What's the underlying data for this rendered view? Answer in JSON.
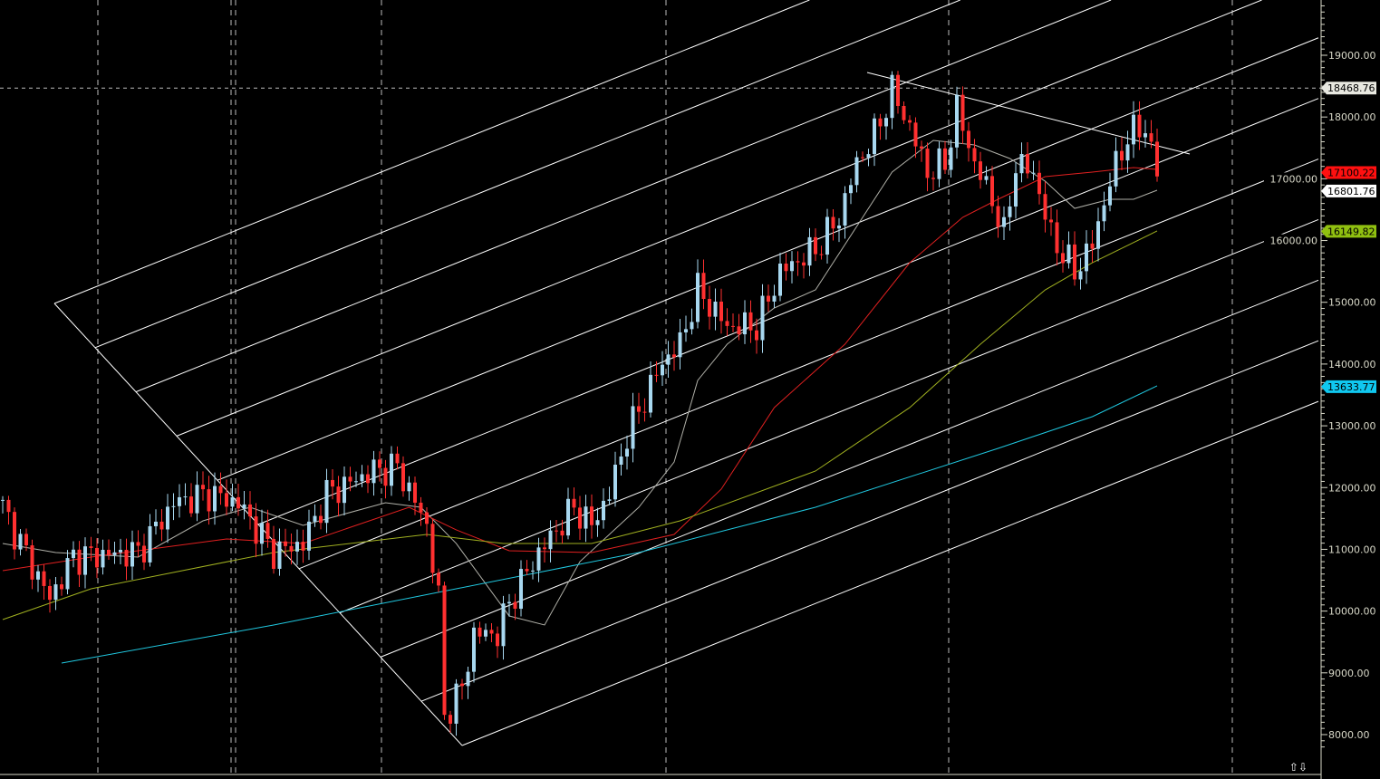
{
  "chart_data": {
    "type": "candlestick",
    "title": "",
    "xlabel": "",
    "ylabel": "",
    "ylim": [
      7700,
      19900
    ],
    "y_ticks": [
      "8000.00",
      "9000.00",
      "10000.00",
      "11000.00",
      "12000.00",
      "13000.00",
      "14000.00",
      "15000.00",
      "16000.00",
      "17000.00",
      "18000.00",
      "19000.00"
    ],
    "grid": "dashed vertical",
    "colors": {
      "up": "#a8d8f0",
      "down": "#ff3030",
      "ma_fast": "#b0b0a8",
      "ma_mid": "#e02020",
      "ma_slow": "#a0b020",
      "ma_long": "#20c8e0",
      "background": "#000000"
    },
    "closes": [
      [
        0,
        11680
      ],
      [
        3,
        11100
      ],
      [
        8,
        10200
      ],
      [
        12,
        10880
      ],
      [
        23,
        10950
      ],
      [
        29,
        11750
      ],
      [
        35,
        11900
      ],
      [
        40,
        11750
      ],
      [
        46,
        10950
      ],
      [
        51,
        11100
      ],
      [
        55,
        11900
      ],
      [
        63,
        12270
      ],
      [
        67,
        12340
      ],
      [
        72,
        11390
      ],
      [
        74,
        10200
      ],
      [
        75,
        8300
      ],
      [
        78,
        8750
      ],
      [
        80,
        9630
      ],
      [
        84,
        9630
      ],
      [
        86,
        10140
      ],
      [
        91,
        10950
      ],
      [
        97,
        11680
      ],
      [
        100,
        11390
      ],
      [
        103,
        11900
      ],
      [
        106,
        12850
      ],
      [
        109,
        13440
      ],
      [
        112,
        14030
      ],
      [
        115,
        14320
      ],
      [
        118,
        15200
      ],
      [
        123,
        14610
      ],
      [
        128,
        14610
      ],
      [
        132,
        15490
      ],
      [
        138,
        15860
      ],
      [
        142,
        16370
      ],
      [
        145,
        17250
      ],
      [
        148,
        17700
      ],
      [
        151,
        18430
      ],
      [
        154,
        17840
      ],
      [
        157,
        17100
      ],
      [
        160,
        17250
      ],
      [
        162,
        18130
      ],
      [
        165,
        17250
      ],
      [
        168,
        16670
      ],
      [
        170,
        16080
      ],
      [
        172,
        17250
      ],
      [
        175,
        17100
      ],
      [
        178,
        16080
      ],
      [
        182,
        15490
      ],
      [
        185,
        15930
      ],
      [
        188,
        16960
      ],
      [
        191,
        17700
      ],
      [
        194,
        17840
      ],
      [
        196,
        17100
      ]
    ],
    "moving_averages": [
      {
        "color": "#b0b0a8",
        "last": "16801.76",
        "points": [
          [
            0,
            11095
          ],
          [
            9,
            10948
          ],
          [
            23,
            10875
          ],
          [
            34,
            11461
          ],
          [
            42,
            11681
          ],
          [
            51,
            11388
          ],
          [
            65,
            11755
          ],
          [
            71,
            11681
          ],
          [
            77,
            11095
          ],
          [
            86,
            9921
          ],
          [
            92,
            9775
          ],
          [
            98,
            10801
          ],
          [
            108,
            11681
          ],
          [
            114,
            12414
          ],
          [
            118,
            13735
          ],
          [
            123,
            14321
          ],
          [
            131,
            14908
          ],
          [
            138,
            15201
          ],
          [
            145,
            16228
          ],
          [
            151,
            17108
          ],
          [
            158,
            17621
          ],
          [
            165,
            17548
          ],
          [
            171,
            17328
          ],
          [
            177,
            16961
          ],
          [
            182,
            16521
          ],
          [
            188,
            16668
          ],
          [
            192,
            16668
          ],
          [
            196,
            16815
          ]
        ]
      },
      {
        "color": "#e02020",
        "last": "17100.22",
        "points": [
          [
            0,
            10655
          ],
          [
            15,
            10875
          ],
          [
            38,
            11168
          ],
          [
            51,
            11095
          ],
          [
            69,
            11681
          ],
          [
            77,
            11315
          ],
          [
            86,
            10977
          ],
          [
            100,
            10948
          ],
          [
            114,
            11241
          ],
          [
            122,
            11975
          ],
          [
            131,
            13295
          ],
          [
            143,
            14321
          ],
          [
            154,
            15641
          ],
          [
            163,
            16376
          ],
          [
            169,
            16668
          ],
          [
            177,
            17035
          ],
          [
            185,
            17108
          ],
          [
            192,
            17181
          ],
          [
            196,
            17152
          ]
        ]
      },
      {
        "color": "#a0b020",
        "last": "16149.82",
        "points": [
          [
            0,
            9862
          ],
          [
            15,
            10361
          ],
          [
            46,
            10948
          ],
          [
            72,
            11241
          ],
          [
            85,
            11095
          ],
          [
            100,
            11095
          ],
          [
            115,
            11461
          ],
          [
            138,
            12268
          ],
          [
            154,
            13295
          ],
          [
            166,
            14321
          ],
          [
            177,
            15201
          ],
          [
            185,
            15641
          ],
          [
            196,
            16155
          ]
        ]
      },
      {
        "color": "#20c8e0",
        "last": "13633.77",
        "points": [
          [
            10,
            9158
          ],
          [
            46,
            9775
          ],
          [
            77,
            10361
          ],
          [
            108,
            10948
          ],
          [
            138,
            11681
          ],
          [
            169,
            12634
          ],
          [
            185,
            13148
          ],
          [
            196,
            13647
          ]
        ]
      }
    ],
    "reference_line": {
      "value": "18468.76",
      "style": "dashed horizontal"
    },
    "price_tags": [
      {
        "value": "18468.76",
        "color": "#e8e8e0"
      },
      {
        "value": "17100.22",
        "color": "#ff1010"
      },
      {
        "value": "16801.76",
        "color": "#ffffff"
      },
      {
        "value": "16149.82",
        "color": "#90c010"
      },
      {
        "value": "13633.77",
        "color": "#10c8f0"
      }
    ]
  },
  "scroll_arrows": "⇧⇩"
}
